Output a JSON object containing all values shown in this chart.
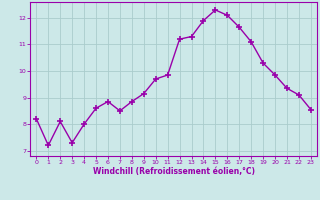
{
  "x": [
    0,
    1,
    2,
    3,
    4,
    5,
    6,
    7,
    8,
    9,
    10,
    11,
    12,
    13,
    14,
    15,
    16,
    17,
    18,
    19,
    20,
    21,
    22,
    23
  ],
  "y": [
    8.2,
    7.2,
    8.1,
    7.3,
    8.0,
    8.6,
    8.85,
    8.5,
    8.85,
    9.15,
    9.7,
    9.85,
    11.2,
    11.3,
    11.9,
    12.3,
    12.1,
    11.65,
    11.1,
    10.3,
    9.85,
    9.35,
    9.1,
    8.55
  ],
  "line_color": "#9900aa",
  "bg_color": "#cce8e8",
  "grid_color": "#aacccc",
  "xlabel": "Windchill (Refroidissement éolien,°C)",
  "ylim": [
    6.8,
    12.6
  ],
  "xlim": [
    -0.5,
    23.5
  ],
  "yticks": [
    7,
    8,
    9,
    10,
    11,
    12
  ],
  "xticks": [
    0,
    1,
    2,
    3,
    4,
    5,
    6,
    7,
    8,
    9,
    10,
    11,
    12,
    13,
    14,
    15,
    16,
    17,
    18,
    19,
    20,
    21,
    22,
    23
  ],
  "tick_color": "#9900aa",
  "label_color": "#9900aa",
  "marker": "+",
  "marker_size": 4.0,
  "line_width": 1.0
}
